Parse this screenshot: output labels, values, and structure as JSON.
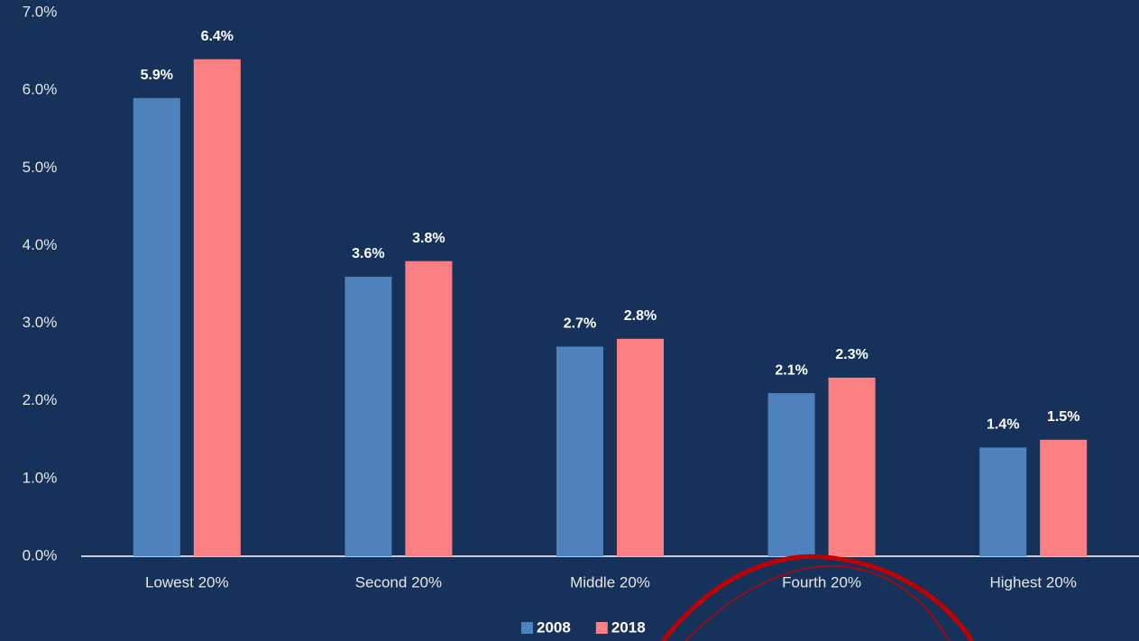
{
  "chart_data": {
    "type": "bar",
    "categories": [
      "Lowest 20%",
      "Second 20%",
      "Middle 20%",
      "Fourth 20%",
      "Highest 20%"
    ],
    "series": [
      {
        "name": "2008",
        "color": "#4f81bd",
        "values": [
          5.9,
          3.6,
          2.7,
          2.1,
          1.4
        ],
        "value_labels": [
          "5.9%",
          "3.6%",
          "2.7%",
          "2.1%",
          "1.4%"
        ]
      },
      {
        "name": "2018",
        "color": "#fc8081",
        "values": [
          6.4,
          3.8,
          2.8,
          2.3,
          1.5
        ],
        "value_labels": [
          "6.4%",
          "3.8%",
          "2.8%",
          "2.3%",
          "1.5%"
        ]
      }
    ],
    "ylim": [
      0,
      7
    ],
    "yticks": [
      {
        "value": 0,
        "label": "0.0%"
      },
      {
        "value": 1,
        "label": "1.0%"
      },
      {
        "value": 2,
        "label": "2.0%"
      },
      {
        "value": 3,
        "label": "3.0%"
      },
      {
        "value": 4,
        "label": "4.0%"
      },
      {
        "value": 5,
        "label": "5.0%"
      },
      {
        "value": 6,
        "label": "6.0%"
      },
      {
        "value": 7,
        "label": "7.0%"
      }
    ],
    "legend": "bottom"
  }
}
